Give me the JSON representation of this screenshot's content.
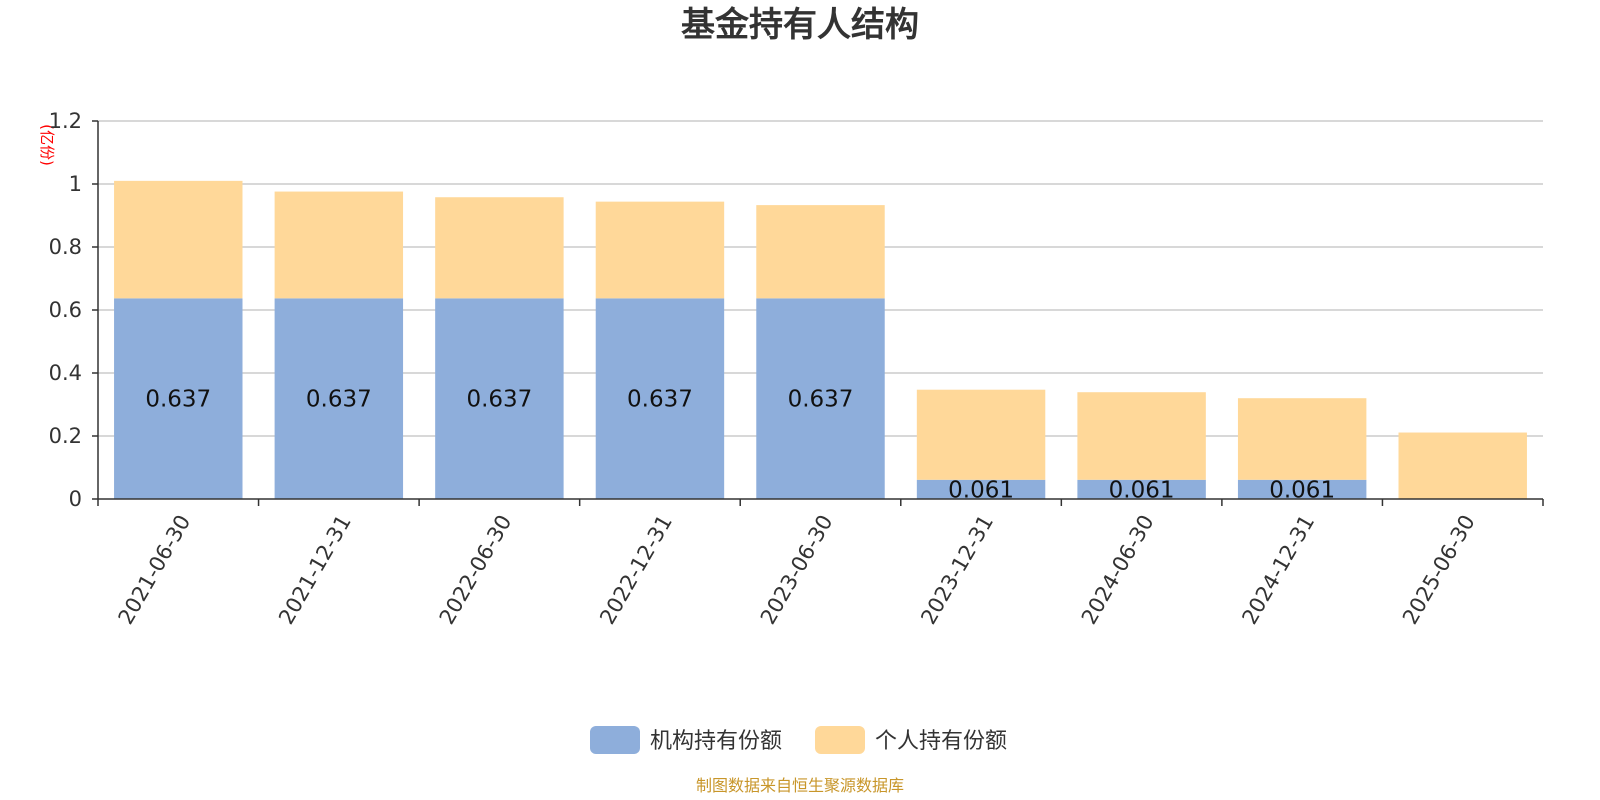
{
  "colors": {
    "institutional": "#8eaedb",
    "individual": "#ffd899",
    "unit": "#ff0000",
    "source": "#c8962a",
    "grid": "#cccccc",
    "axis": "#333333"
  },
  "chart_data": {
    "type": "bar",
    "stacked": true,
    "title": "基金持有人结构",
    "ylabel": "(亿份)",
    "ylim": [
      0,
      1.2
    ],
    "yticks": [
      "0",
      "0.2",
      "0.4",
      "0.6",
      "0.8",
      "1",
      "1.2"
    ],
    "grid": true,
    "legend_position": "bottom-center",
    "categories": [
      "2021-06-30",
      "2021-12-31",
      "2022-06-30",
      "2022-12-31",
      "2023-06-30",
      "2023-12-31",
      "2024-06-30",
      "2024-12-31",
      "2025-06-30"
    ],
    "series": [
      {
        "name": "机构持有份额",
        "values": [
          0.637,
          0.637,
          0.637,
          0.637,
          0.637,
          0.061,
          0.061,
          0.061,
          0
        ],
        "labels": [
          "0.637",
          "0.637",
          "0.637",
          "0.637",
          "0.637",
          "0.061",
          "0.061",
          "0.061",
          ""
        ]
      },
      {
        "name": "个人持有份额",
        "values": [
          0.373,
          0.339,
          0.321,
          0.307,
          0.296,
          0.286,
          0.278,
          0.259,
          0.211
        ],
        "labels": [
          "",
          "",
          "",
          "",
          "",
          "",
          "",
          "",
          ""
        ]
      }
    ]
  },
  "source_text": "制图数据来自恒生聚源数据库"
}
